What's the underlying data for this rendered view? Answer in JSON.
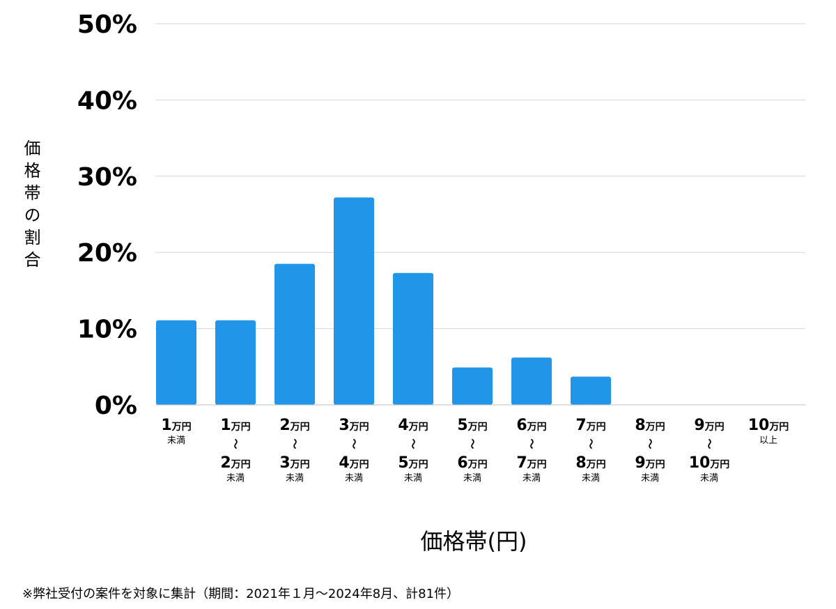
{
  "chart_data": {
    "type": "bar",
    "ylabel": "価格帯の割合",
    "xlabel": "価格帯(円)",
    "ylim": [
      0,
      50
    ],
    "yticks": [
      "0%",
      "10%",
      "20%",
      "30%",
      "40%",
      "50%"
    ],
    "grid": true,
    "bar_color": "#2196e8",
    "categories": [
      {
        "from": "1",
        "from_unit": "万円",
        "to": "",
        "to_unit": "",
        "suffix": "未満"
      },
      {
        "from": "1",
        "from_unit": "万円",
        "to": "2",
        "to_unit": "万円",
        "suffix": "未満"
      },
      {
        "from": "2",
        "from_unit": "万円",
        "to": "3",
        "to_unit": "万円",
        "suffix": "未満"
      },
      {
        "from": "3",
        "from_unit": "万円",
        "to": "4",
        "to_unit": "万円",
        "suffix": "未満"
      },
      {
        "from": "4",
        "from_unit": "万円",
        "to": "5",
        "to_unit": "万円",
        "suffix": "未満"
      },
      {
        "from": "5",
        "from_unit": "万円",
        "to": "6",
        "to_unit": "万円",
        "suffix": "未満"
      },
      {
        "from": "6",
        "from_unit": "万円",
        "to": "7",
        "to_unit": "万円",
        "suffix": "未満"
      },
      {
        "from": "7",
        "from_unit": "万円",
        "to": "8",
        "to_unit": "万円",
        "suffix": "未満"
      },
      {
        "from": "8",
        "from_unit": "万円",
        "to": "9",
        "to_unit": "万円",
        "suffix": "未満"
      },
      {
        "from": "9",
        "from_unit": "万円",
        "to": "10",
        "to_unit": "万円",
        "suffix": "未満"
      },
      {
        "from": "10",
        "from_unit": "万円",
        "to": "",
        "to_unit": "",
        "suffix": "以上"
      }
    ],
    "range_symbol": "〜",
    "values": [
      11.1,
      11.1,
      18.5,
      27.2,
      17.3,
      4.9,
      6.2,
      3.7,
      0,
      0,
      0
    ]
  },
  "footnote": "※弊社受付の案件を対象に集計（期間：2021年１月〜2024年8月、計81件）"
}
